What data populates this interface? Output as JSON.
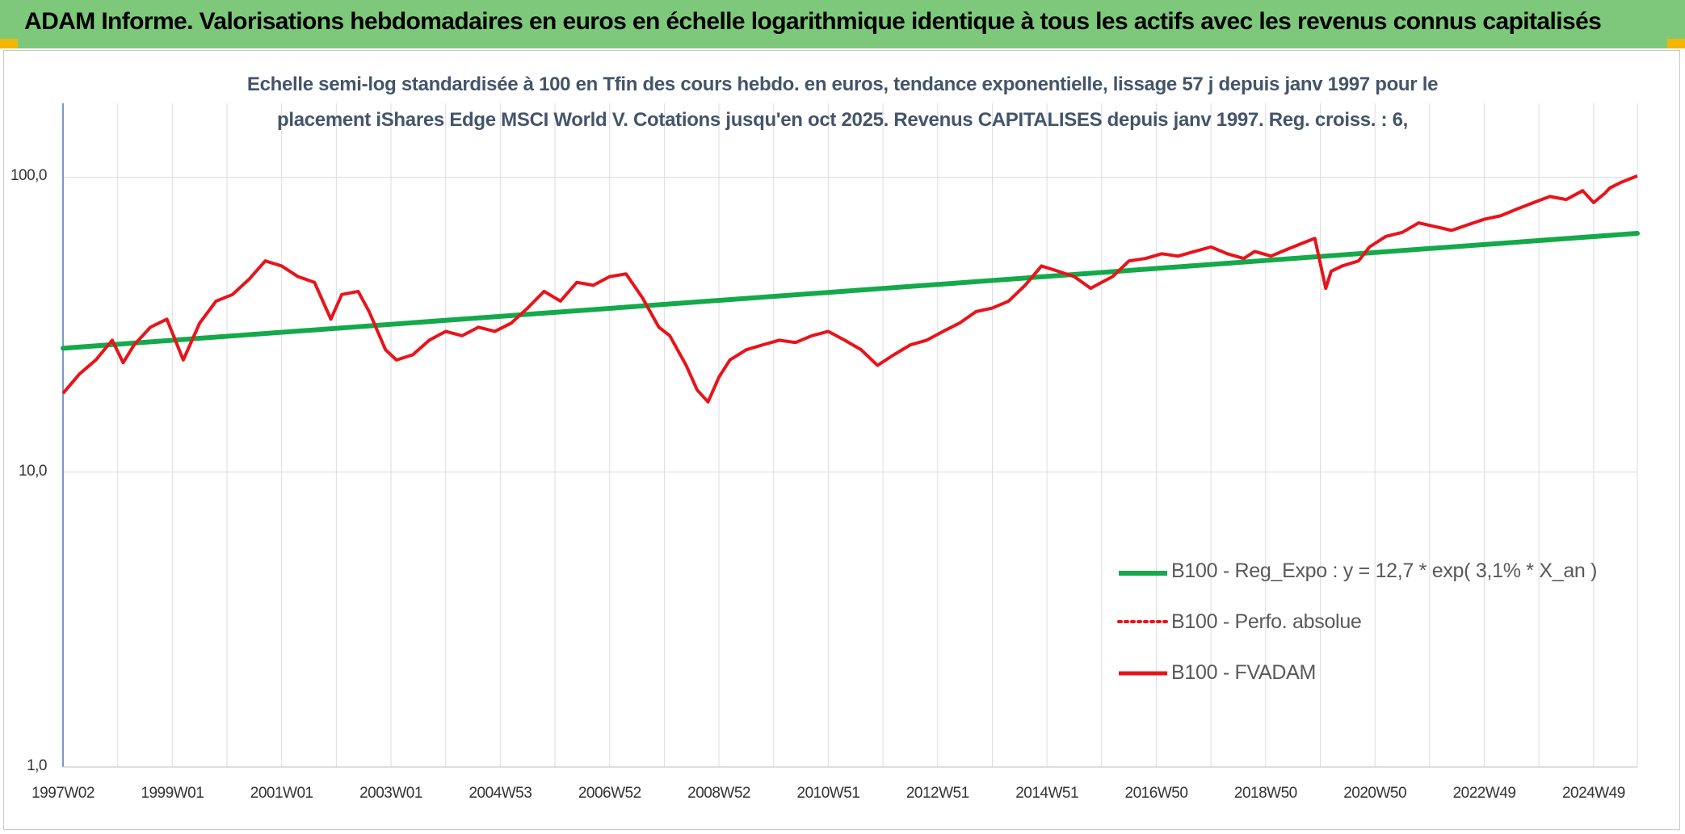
{
  "header": {
    "title": "ADAM Informe. Valorisations hebdomadaires en euros en échelle logarithmique identique à tous les actifs avec les revenus connus capitalisés"
  },
  "colors": {
    "header_bg": "#7dc87a",
    "regression": "#14a94a",
    "fvadam": "#e8141b",
    "perfo": "#e8141b",
    "subtitle": "#44546a"
  },
  "chart_data": {
    "type": "line",
    "title_lines": [
      "Echelle semi-log standardisée à 100 en Tfin des cours hebdo. en euros, tendance exponentielle, lissage 57 j depuis janv 1997 pour le",
      "placement iShares Edge MSCI World V. Cotations jusqu'en oct 2025. Revenus CAPITALISES depuis janv 1997. Reg. croiss. : 6,"
    ],
    "y_scale": "log",
    "ylim": [
      1,
      178
    ],
    "y_ticks": [
      "1,0",
      "10,0",
      "100,0"
    ],
    "y_tick_values": [
      1,
      10,
      100
    ],
    "xlim": [
      1997.0,
      2025.8
    ],
    "x_ticks": [
      "1997W02",
      "1999W01",
      "2001W01",
      "2003W01",
      "2004W53",
      "2006W52",
      "2008W52",
      "2010W51",
      "2012W51",
      "2014W51",
      "2016W50",
      "2018W50",
      "2020W50",
      "2022W49",
      "2024W49"
    ],
    "x_tick_years": [
      1997.0,
      1999.0,
      2001.0,
      2003.0,
      2005.0,
      2007.0,
      2009.0,
      2011.0,
      2013.0,
      2015.0,
      2017.0,
      2019.0,
      2021.0,
      2023.0,
      2025.0
    ],
    "grid": true,
    "legend_position": "right, lower-middle",
    "series": [
      {
        "name": "B100 - Reg_Expo : y = 12,7 * exp( 3,1% * X_an )",
        "style": "solid-thick",
        "color": "#14a94a",
        "x": [
          1997.0,
          2025.8
        ],
        "y": [
          26.3,
          64.5
        ]
      },
      {
        "name": "B100 - Perfo. absolue",
        "style": "dotted",
        "color": "#e8141b",
        "x": [],
        "y": []
      },
      {
        "name": "B100 - FVADAM",
        "style": "solid",
        "color": "#e8141b",
        "x": [
          1997.0,
          1997.3,
          1997.6,
          1997.9,
          1998.1,
          1998.3,
          1998.6,
          1998.9,
          1999.2,
          1999.5,
          1999.8,
          2000.1,
          2000.4,
          2000.7,
          2001.0,
          2001.3,
          2001.6,
          2001.9,
          2002.1,
          2002.4,
          2002.6,
          2002.9,
          2003.1,
          2003.4,
          2003.7,
          2004.0,
          2004.3,
          2004.6,
          2004.9,
          2005.2,
          2005.5,
          2005.8,
          2006.1,
          2006.4,
          2006.7,
          2007.0,
          2007.3,
          2007.6,
          2007.9,
          2008.1,
          2008.4,
          2008.6,
          2008.8,
          2009.0,
          2009.2,
          2009.5,
          2009.8,
          2010.1,
          2010.4,
          2010.7,
          2011.0,
          2011.3,
          2011.6,
          2011.9,
          2012.2,
          2012.5,
          2012.8,
          2013.1,
          2013.4,
          2013.7,
          2014.0,
          2014.3,
          2014.6,
          2014.9,
          2015.2,
          2015.5,
          2015.8,
          2016.0,
          2016.2,
          2016.5,
          2016.8,
          2017.1,
          2017.4,
          2017.7,
          2018.0,
          2018.3,
          2018.6,
          2018.8,
          2019.1,
          2019.4,
          2019.7,
          2019.9,
          2020.1,
          2020.2,
          2020.4,
          2020.7,
          2020.9,
          2021.2,
          2021.5,
          2021.8,
          2022.1,
          2022.4,
          2022.7,
          2023.0,
          2023.3,
          2023.6,
          2023.9,
          2024.2,
          2024.5,
          2024.8,
          2025.0,
          2025.2,
          2025.3,
          2025.5,
          2025.8
        ],
        "y": [
          18.5,
          21.5,
          24,
          28,
          23.5,
          27,
          31,
          33,
          24,
          32,
          38,
          40,
          45,
          52,
          50,
          46,
          44,
          33,
          40,
          41,
          35,
          26,
          24,
          25,
          28,
          30,
          29,
          31,
          30,
          32,
          36,
          41,
          38,
          44,
          43,
          46,
          47,
          39,
          31,
          29,
          23,
          19,
          17.3,
          21,
          24,
          26,
          27,
          28,
          27.5,
          29,
          30,
          28,
          26,
          23,
          25,
          27,
          28,
          30,
          32,
          35,
          36,
          38,
          43,
          50,
          48,
          46,
          42,
          44,
          46,
          52,
          53,
          55,
          54,
          56,
          58,
          55,
          53,
          56,
          54,
          57,
          60,
          62,
          42,
          48,
          50,
          52,
          58,
          63,
          65,
          70,
          68,
          66,
          69,
          72,
          74,
          78,
          82,
          86,
          84,
          90,
          82,
          88,
          92,
          96,
          101
        ]
      }
    ]
  }
}
